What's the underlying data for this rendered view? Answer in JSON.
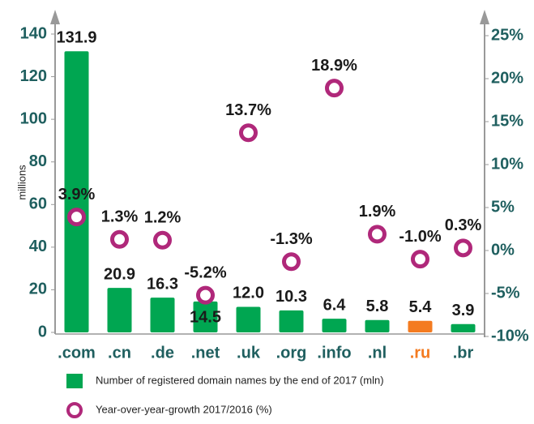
{
  "chart_data": {
    "type": "bar+scatter",
    "y_axis_label": "millions",
    "categories": [
      ".com",
      ".cn",
      ".de",
      ".net",
      ".uk",
      ".org",
      ".info",
      ".nl",
      ".ru",
      ".br"
    ],
    "category_label_colors": [
      "#1f5f5f",
      "#1f5f5f",
      "#1f5f5f",
      "#1f5f5f",
      "#1f5f5f",
      "#1f5f5f",
      "#1f5f5f",
      "#1f5f5f",
      "#f47b20",
      "#1f5f5f"
    ],
    "series": [
      {
        "name": "Number of registered domain names by the end of 2017 (mln)",
        "type": "bar",
        "color": "#00a651",
        "colors": [
          "#00a651",
          "#00a651",
          "#00a651",
          "#00a651",
          "#00a651",
          "#00a651",
          "#00a651",
          "#00a651",
          "#f47b20",
          "#00a651"
        ],
        "values": [
          131.9,
          20.9,
          16.3,
          14.5,
          12.0,
          10.3,
          6.4,
          5.8,
          5.4,
          3.9
        ],
        "value_labels": [
          "131.9",
          "20.9",
          "16.3",
          "14.5",
          "12.0",
          "10.3",
          "6.4",
          "5.8",
          "5.4",
          "3.9"
        ]
      },
      {
        "name": "Year-over-year-growth 2017/2016 (%)",
        "type": "scatter",
        "axis": "y2",
        "color": "#b0287a",
        "values": [
          3.9,
          1.3,
          1.2,
          -5.2,
          13.7,
          -1.3,
          18.9,
          1.9,
          -1.0,
          0.3
        ],
        "value_labels": [
          "3.9%",
          "1.3%",
          "1.2%",
          "-5.2%",
          "13.7%",
          "-1.3%",
          "18.9%",
          "1.9%",
          "-1.0%",
          "0.3%"
        ]
      }
    ],
    "ylim": [
      0,
      140
    ],
    "yticks": [
      0,
      20,
      40,
      60,
      80,
      100,
      120,
      140
    ],
    "y2lim": [
      -10,
      25
    ],
    "y2ticks": [
      {
        "value": -10,
        "label": "-10%"
      },
      {
        "value": -5,
        "label": "-5%"
      },
      {
        "value": 0,
        "label": "0%"
      },
      {
        "value": 5,
        "label": "5%"
      },
      {
        "value": 10,
        "label": "10%"
      },
      {
        "value": 15,
        "label": "15%"
      },
      {
        "value": 20,
        "label": "20%"
      },
      {
        "value": 25,
        "label": "25%"
      }
    ],
    "grid": false
  }
}
